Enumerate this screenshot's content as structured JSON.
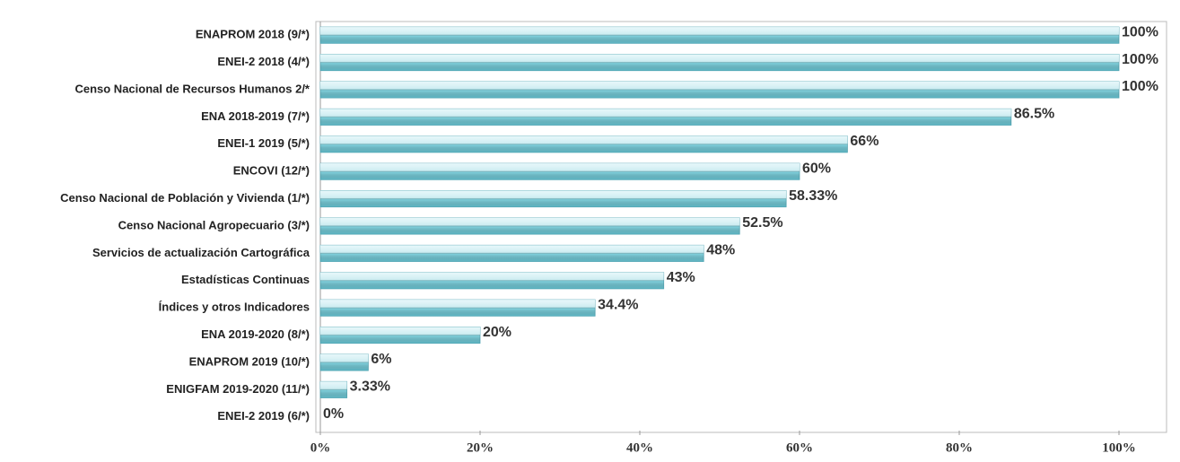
{
  "chart_data": {
    "type": "bar",
    "orientation": "horizontal",
    "categories": [
      "ENAPROM 2018 (9/*)",
      "ENEI-2 2018 (4/*)",
      "Censo Nacional de Recursos Humanos 2/*",
      "ENA 2018-2019  (7/*)",
      "ENEI-1 2019 (5/*)",
      "ENCOVI (12/*)",
      "Censo Nacional de Población y Vivienda (1/*)",
      "Censo Nacional Agropecuario (3/*)",
      "Servicios de actualización Cartográfica",
      "Estadísticas Continuas",
      "Índices y otros Indicadores",
      "ENA 2019-2020 (8/*)",
      "ENAPROM 2019 (10/*)",
      "ENIGFAM 2019-2020 (11/*)",
      "ENEI-2 2019 (6/*)"
    ],
    "values": [
      100,
      100,
      100,
      86.5,
      66,
      60,
      58.33,
      52.5,
      48,
      43,
      34.4,
      20,
      6,
      3.33,
      0
    ],
    "value_labels": [
      "100%",
      "100%",
      "100%",
      "86.5%",
      "66%",
      "60%",
      "58.33%",
      "52.5%",
      "48%",
      "43%",
      "34.4%",
      "20%",
      "6%",
      "3.33%",
      "0%"
    ],
    "color": "#7fd0dc",
    "xlim": [
      0,
      100
    ],
    "xticks": [
      {
        "value": 0,
        "label": "0%"
      },
      {
        "value": 20,
        "label": "20%"
      },
      {
        "value": 40,
        "label": "40%"
      },
      {
        "value": 60,
        "label": "60%"
      },
      {
        "value": 80,
        "label": "80%"
      },
      {
        "value": 100,
        "label": "100%"
      }
    ]
  }
}
